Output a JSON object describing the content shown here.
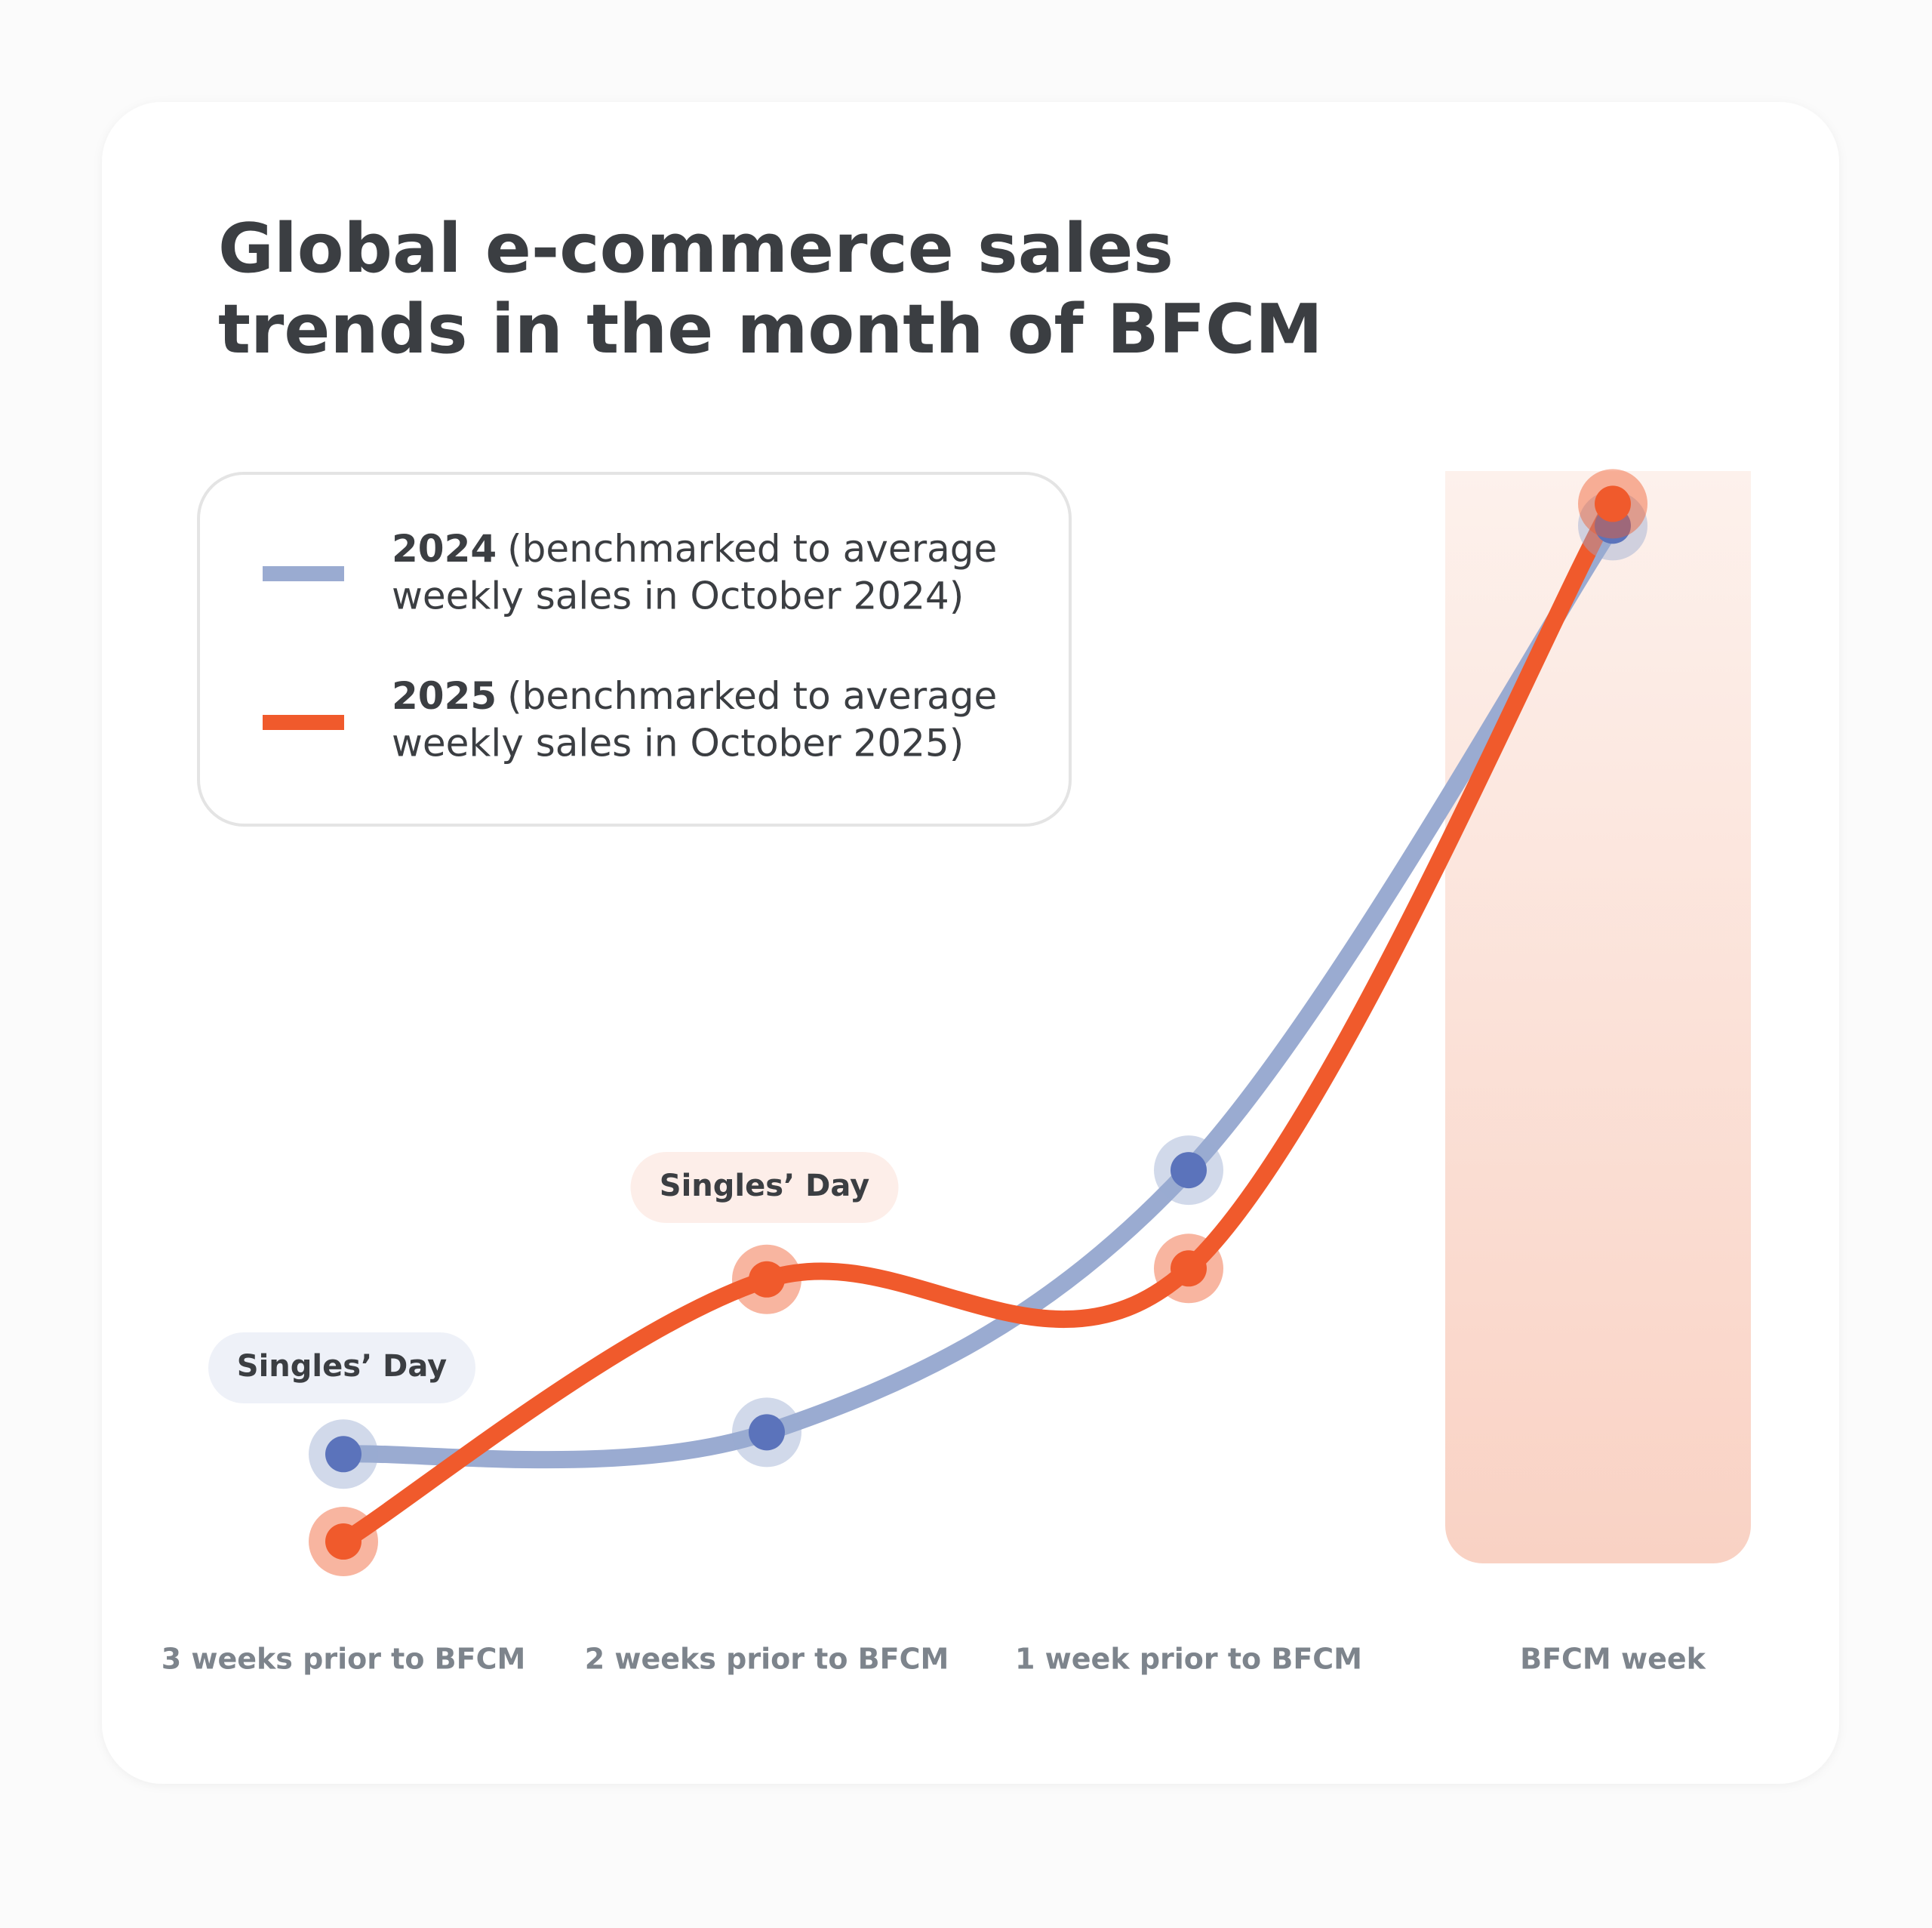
{
  "chart_data": {
    "type": "line",
    "title": [
      "Global e-commerce sales",
      "trends in the month of BFCM"
    ],
    "categories": [
      "3 weeks prior to BFCM",
      "2 weeks prior to BFCM",
      "1 week prior to BFCM",
      "BFCM week"
    ],
    "series": [
      {
        "name": "2024",
        "description": [
          "(benchmarked to average",
          "weekly sales in October 2024)"
        ],
        "color": "#9aabd1",
        "point_color": "#5b73bb",
        "values": [
          10,
          12,
          36,
          95
        ]
      },
      {
        "name": "2025",
        "description": [
          "(benchmarked to average",
          "weekly sales in October 2025)"
        ],
        "color": "#f05a2c",
        "point_color": "#f05a2c",
        "values": [
          2,
          26,
          27,
          97
        ]
      }
    ],
    "annotations": [
      "Singles’ Day",
      "Singles’ Day"
    ],
    "ylim": [
      0,
      100
    ],
    "highlight_category": 3
  }
}
